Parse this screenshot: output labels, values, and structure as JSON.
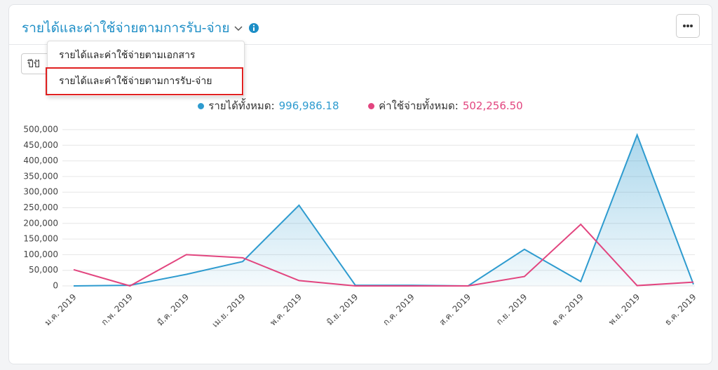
{
  "header": {
    "title": "รายได้และค่าใช้จ่ายตามการรับ-จ่าย"
  },
  "filter": {
    "year_select": "ปีปั"
  },
  "dropdown": {
    "items": [
      "รายได้และค่าใช้จ่ายตามเอกสาร",
      "รายได้และค่าใช้จ่ายตามการรับ-จ่าย"
    ]
  },
  "legend": {
    "income_label": "รายได้ทั้งหมด:",
    "income_total": "996,986.18",
    "expense_label": "ค่าใช้จ่ายทั้งหมด:",
    "expense_total": "502,256.50"
  },
  "chart_data": {
    "type": "area-line",
    "categories": [
      "ม.ค. 2019",
      "ก.พ. 2019",
      "มี.ค. 2019",
      "เม.ย. 2019",
      "พ.ค. 2019",
      "มิ.ย. 2019",
      "ก.ค. 2019",
      "ส.ค. 2019",
      "ก.ย. 2019",
      "ต.ค. 2019",
      "พ.ย. 2019",
      "ธ.ค. 2019"
    ],
    "series": [
      {
        "name": "รายได้ทั้งหมด",
        "color": "#2e9bcf",
        "fill": true,
        "values": [
          0,
          2000,
          37000,
          78000,
          258000,
          2000,
          2000,
          0,
          117000,
          14000,
          483000,
          5000
        ]
      },
      {
        "name": "ค่าใช้จ่ายทั้งหมด",
        "color": "#e2457f",
        "fill": false,
        "values": [
          52000,
          0,
          100000,
          90000,
          17000,
          0,
          0,
          0,
          30000,
          197000,
          1000,
          12000
        ]
      }
    ],
    "ylim": [
      0,
      500000
    ],
    "yticks": [
      0,
      {
        "value": 50000,
        "label": "50,000"
      },
      {
        "value": 100000,
        "label": "100,000"
      },
      {
        "value": 150000,
        "label": "150,000"
      },
      {
        "value": 200000,
        "label": "200,000"
      },
      {
        "value": 250000,
        "label": "250,000"
      },
      {
        "value": 300000,
        "label": "300,000"
      },
      {
        "value": 350000,
        "label": "350,000"
      },
      {
        "value": 400000,
        "label": "400,000"
      },
      {
        "value": 450000,
        "label": "450,000"
      },
      {
        "value": 500000,
        "label": "500,000"
      }
    ],
    "grid": true
  }
}
